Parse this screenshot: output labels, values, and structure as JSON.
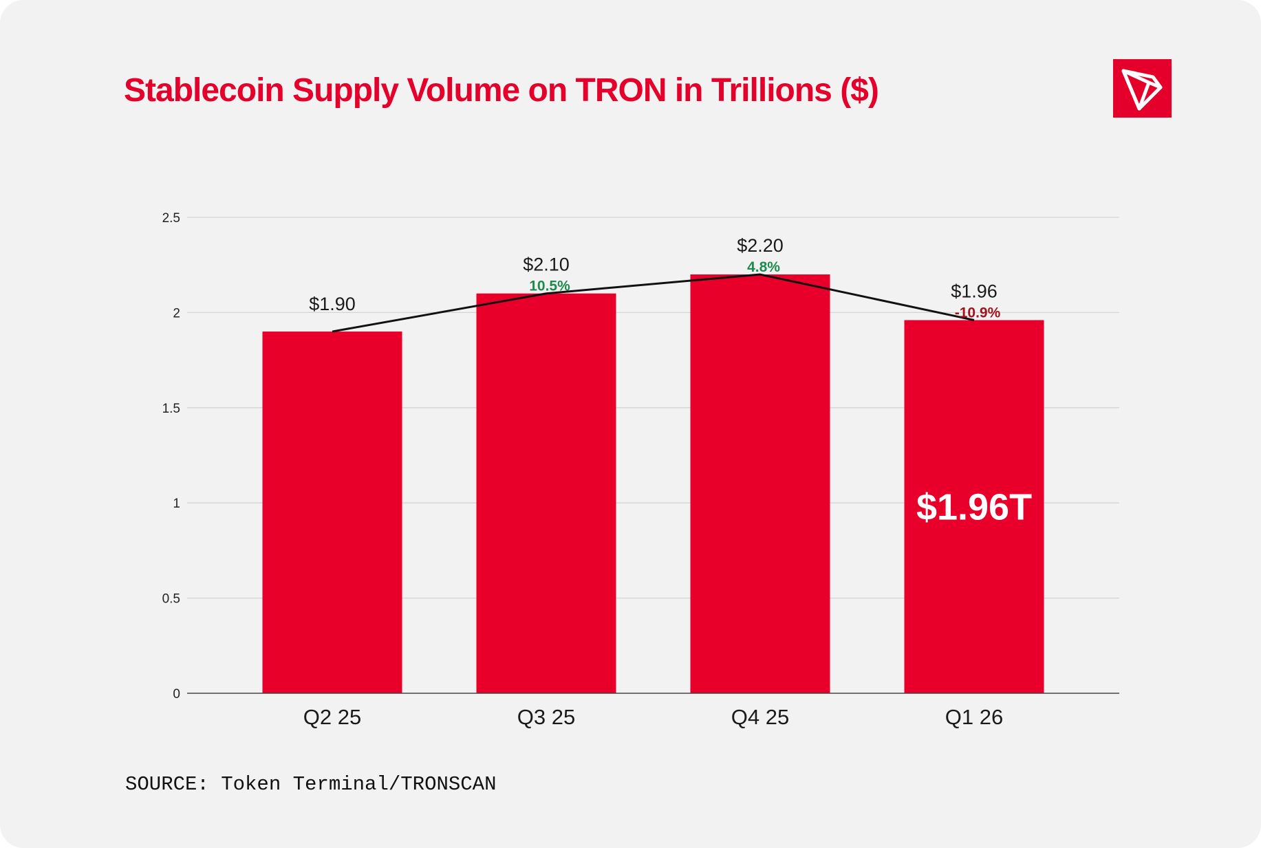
{
  "header": {
    "title": "Stablecoin Supply Volume on TRON in Trillions ($)"
  },
  "logo": {
    "icon": "tron-logo-icon",
    "color": "#e5002b"
  },
  "chart_data": {
    "type": "bar",
    "title": "Stablecoin Supply Volume on TRON in Trillions ($)",
    "xlabel": "",
    "ylabel": "",
    "categories": [
      "Q2 25",
      "Q3 25",
      "Q4 25",
      "Q1 26"
    ],
    "values": [
      1.9,
      2.1,
      2.2,
      1.96
    ],
    "value_labels": [
      "$1.90",
      "$2.10",
      "$2.20",
      "$1.96"
    ],
    "change_labels": [
      "",
      "10.5%",
      "4.8%",
      "-10.9%"
    ],
    "change_colors": [
      "",
      "#1e8a4c",
      "#1e8a4c",
      "#a0141c"
    ],
    "highlight": {
      "category": "Q1 26",
      "label": "$1.96T"
    },
    "yticks": [
      "0",
      "0.5",
      "1",
      "1.5",
      "2",
      "2.5"
    ],
    "ytick_values": [
      0,
      0.5,
      1,
      1.5,
      2,
      2.5
    ],
    "ylim": [
      0,
      2.5
    ],
    "grid": true,
    "legend": "none",
    "trend_line": true,
    "bar_color": "#e8002b",
    "line_color": "#111111"
  },
  "footer": {
    "source": "SOURCE: Token Terminal/TRONSCAN"
  }
}
